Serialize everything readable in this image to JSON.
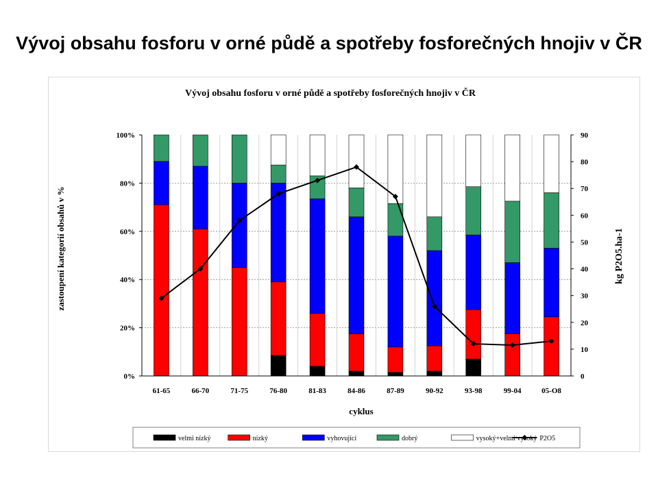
{
  "slide": {
    "title": "Vývoj obsahu fosforu v orné půdě a spotřeby fosforečných hnojiv v ČR"
  },
  "chart_data": {
    "type": "bar",
    "stacked": true,
    "title": "Vývoj obsahu fosforu v orné půdě a spotřeby fosforečných hnojiv v ČR",
    "xlabel": "cyklus",
    "ylabel": "zastoupení kategorií obsahů v %",
    "y2label": "kg P2O5.ha-1",
    "ylim": [
      0,
      100
    ],
    "y2lim": [
      0,
      90
    ],
    "yticks": [
      "0%",
      "20%",
      "40%",
      "60%",
      "80%",
      "100%"
    ],
    "y2ticks": [
      "0",
      "10",
      "20",
      "30",
      "40",
      "50",
      "60",
      "70",
      "80",
      "90"
    ],
    "grid": true,
    "legend_position": "bottom",
    "categories": [
      "61-65",
      "66-70",
      "71-75",
      "76-80",
      "81-83",
      "84-86",
      "87-89",
      "90-92",
      "93-98",
      "99-04",
      "05-O8"
    ],
    "series": [
      {
        "name": "velmi nízký",
        "color": "#000000",
        "values": [
          0,
          0,
          0,
          8.5,
          4,
          2,
          1.5,
          2,
          7,
          0,
          0
        ]
      },
      {
        "name": "nízký",
        "color": "#ff0000",
        "values": [
          71,
          61,
          45,
          30.5,
          22,
          15.5,
          10.5,
          10.5,
          20.5,
          17.5,
          24.5
        ]
      },
      {
        "name": "vyhovující",
        "color": "#0000ff",
        "values": [
          18,
          26,
          35,
          41,
          47.5,
          48.5,
          46,
          39.5,
          31,
          29.5,
          28.5
        ]
      },
      {
        "name": "dobrý",
        "color": "#339966",
        "values": [
          11,
          13,
          20,
          7.5,
          9.5,
          12,
          13.5,
          14,
          20,
          25.5,
          23
        ]
      },
      {
        "name": "vysoký+velmi vysoký",
        "color": "#ffffff",
        "values": [
          0,
          0,
          0,
          12.5,
          17,
          22,
          28.5,
          34,
          21.5,
          27.5,
          24
        ]
      }
    ],
    "line_series": {
      "name": "P2O5",
      "color": "#000000",
      "axis": "right",
      "values": [
        29,
        40,
        58,
        68,
        73,
        78,
        67,
        26,
        12,
        11.5,
        13
      ]
    }
  }
}
